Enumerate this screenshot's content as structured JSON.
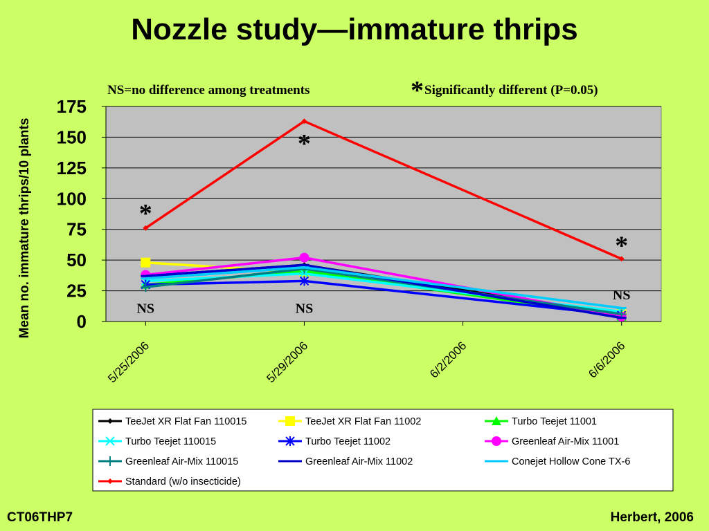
{
  "slide": {
    "title": "Nozzle study—immature thrips",
    "footer_left": "CT06THP7",
    "footer_right": "Herbert, 2006"
  },
  "colors": {
    "background": "#ccff66",
    "plot_area": "#c0c0c0"
  },
  "chart_data": {
    "type": "line",
    "title": "",
    "xlabel": "",
    "ylabel": "Mean no. immature thrips/10 plants",
    "x_ticks": [
      "5/25/2006",
      "5/29/2006",
      "6/2/2006",
      "6/6/2006"
    ],
    "x_range": [
      "5/24/2006",
      "6/7/2006"
    ],
    "ylim": [
      0,
      175
    ],
    "y_ticks": [
      0,
      25,
      50,
      75,
      100,
      125,
      150,
      175
    ],
    "grid": "horizontal",
    "legend_position": "bottom",
    "annotations": {
      "header_left": "NS=no difference among treatments",
      "header_star": "*",
      "header_right": "Significantly different (P=0.05)",
      "labels": [
        {
          "text": "*",
          "date": "5/25/2006",
          "y": 90
        },
        {
          "text": "NS",
          "date": "5/25/2006",
          "y": 11
        },
        {
          "text": "*",
          "date": "5/29/2006",
          "y": 147
        },
        {
          "text": "NS",
          "date": "5/29/2006",
          "y": 11
        },
        {
          "text": "*",
          "date": "6/6/2006",
          "y": 64
        },
        {
          "text": "NS",
          "date": "6/6/2006",
          "y": 22
        }
      ]
    },
    "series": [
      {
        "name": "TeeJet XR Flat Fan 110015",
        "color": "#000000",
        "marker": "diamond",
        "points": [
          [
            "5/25/2006",
            37
          ],
          [
            "5/29/2006",
            46
          ],
          [
            "6/6/2006",
            5
          ]
        ]
      },
      {
        "name": "TeeJet XR Flat Fan 11002",
        "color": "#ffff00",
        "marker": "square",
        "points": [
          [
            "5/25/2006",
            48
          ],
          [
            "5/29/2006",
            40
          ],
          [
            "6/6/2006",
            6
          ]
        ]
      },
      {
        "name": "Turbo Teejet 11001",
        "color": "#00ff00",
        "marker": "triangle",
        "points": [
          [
            "5/25/2006",
            30
          ],
          [
            "5/29/2006",
            41
          ],
          [
            "6/6/2006",
            4
          ]
        ]
      },
      {
        "name": "Turbo Teejet 110015",
        "color": "#00ffff",
        "marker": "x",
        "points": [
          [
            "5/25/2006",
            33
          ],
          [
            "5/29/2006",
            39
          ],
          [
            "6/6/2006",
            8
          ]
        ]
      },
      {
        "name": "Turbo Teejet 11002",
        "color": "#0000ff",
        "marker": "star",
        "points": [
          [
            "5/25/2006",
            30
          ],
          [
            "5/29/2006",
            33
          ],
          [
            "6/6/2006",
            5
          ]
        ]
      },
      {
        "name": "Greenleaf Air-Mix 11001",
        "color": "#ff00ff",
        "marker": "circle",
        "points": [
          [
            "5/25/2006",
            38
          ],
          [
            "5/29/2006",
            52
          ],
          [
            "6/6/2006",
            4
          ]
        ]
      },
      {
        "name": "Greenleaf Air-Mix 110015",
        "color": "#008080",
        "marker": "plus",
        "points": [
          [
            "5/25/2006",
            28
          ],
          [
            "5/29/2006",
            43
          ],
          [
            "6/6/2006",
            6
          ]
        ]
      },
      {
        "name": "Greenleaf Air-Mix 11002",
        "color": "#0000cc",
        "marker": "dash",
        "points": [
          [
            "5/25/2006",
            37
          ],
          [
            "5/29/2006",
            46
          ],
          [
            "6/6/2006",
            3
          ]
        ]
      },
      {
        "name": "Conejet Hollow Cone TX-6",
        "color": "#00ccff",
        "marker": "dash",
        "points": [
          [
            "5/25/2006",
            35
          ],
          [
            "5/29/2006",
            44
          ],
          [
            "6/6/2006",
            11
          ]
        ]
      },
      {
        "name": "Standard (w/o insecticide)",
        "color": "#ff0000",
        "marker": "diamond",
        "points": [
          [
            "5/25/2006",
            76
          ],
          [
            "5/29/2006",
            163
          ],
          [
            "6/6/2006",
            51
          ]
        ]
      }
    ]
  }
}
